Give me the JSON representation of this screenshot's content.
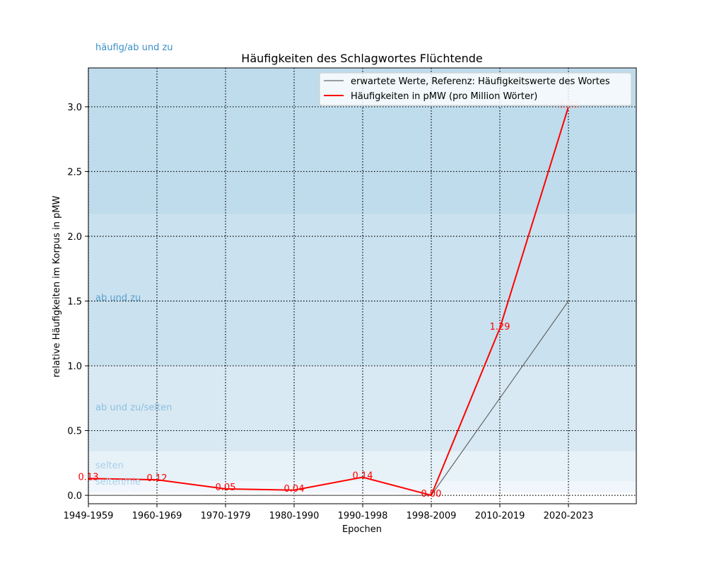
{
  "chart_data": {
    "type": "line",
    "title": "Häufigkeiten des Schlagwortes Flüchtende",
    "xlabel": "Epochen",
    "ylabel": "relative Häufigkeiten im Korpus in pMW",
    "categories": [
      "1949-1959",
      "1960-1969",
      "1970-1979",
      "1980-1990",
      "1990-1998",
      "1998-2009",
      "2010-2019",
      "2020-2023"
    ],
    "ylim": [
      -0.065,
      3.3
    ],
    "yticks": [
      "0.0",
      "0.5",
      "1.0",
      "1.5",
      "2.0",
      "2.5",
      "3.0"
    ],
    "grid": true,
    "legend_position": "top-right",
    "bands": [
      {
        "label": "häufig/ab und zu",
        "from": 2.17,
        "to": 3.3,
        "color": "#bfdcec"
      },
      {
        "label": "ab und zu",
        "from": 1.0,
        "to": 2.17,
        "color": "#cae2ef"
      },
      {
        "label": "ab und zu/selten",
        "from": 0.34,
        "to": 1.0,
        "color": "#d8e9f3"
      },
      {
        "label": "selten",
        "from": 0.11,
        "to": 0.34,
        "color": "#e6f1f8"
      },
      {
        "label": "selten/nie",
        "from": 0.02,
        "to": 0.11,
        "color": "#f0f6fb"
      }
    ],
    "series": [
      {
        "name": "erwartete Werte, Referenz: Häufigkeitswerte des Wortes",
        "color": "#666666",
        "values": [
          0,
          0,
          0,
          0,
          0,
          0,
          0.75,
          1.5
        ]
      },
      {
        "name": "Häufigkeiten in pMW (pro Million Wörter)",
        "color": "#ff0000",
        "values": [
          0.13,
          0.12,
          0.05,
          0.04,
          0.14,
          0.0,
          1.29,
          3.0
        ],
        "labels": [
          "0.13",
          "0.12",
          "0.05",
          "0.04",
          "0.14",
          "0.00",
          "1.29",
          "3.00"
        ]
      }
    ]
  }
}
